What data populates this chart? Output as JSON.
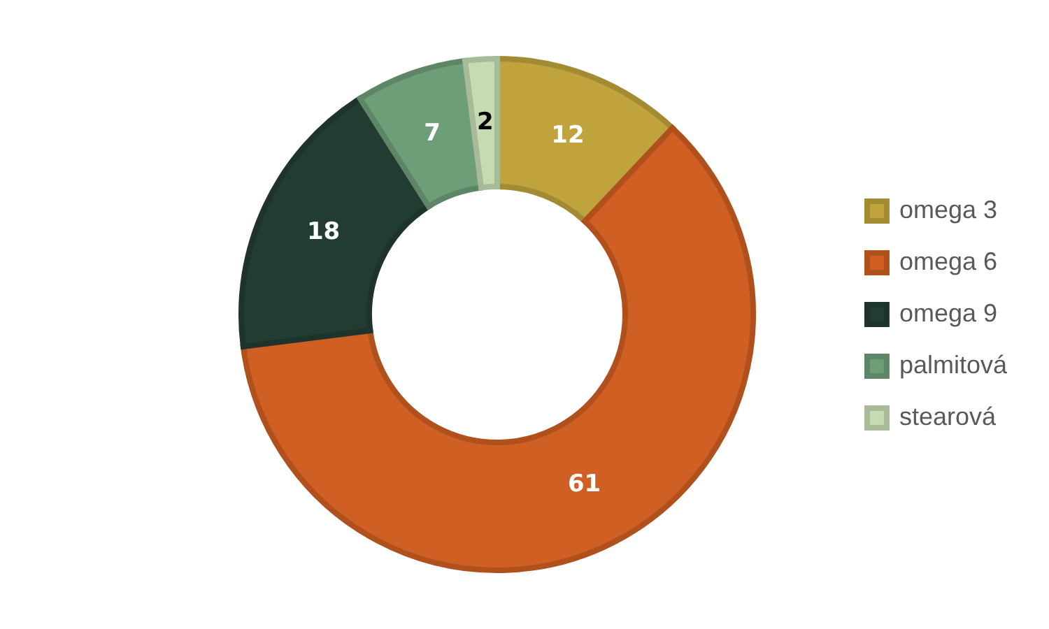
{
  "chart_data": {
    "type": "donut",
    "categories": [
      "omega 3",
      "omega 6",
      "omega 9",
      "palmitová",
      "stearová"
    ],
    "values": [
      12,
      61,
      18,
      7,
      2
    ],
    "colors": [
      "#c0a33c",
      "#cf5f22",
      "#233c31",
      "#6e9e78",
      "#c6dbb2"
    ],
    "data_labels": true,
    "legend": "right"
  }
}
